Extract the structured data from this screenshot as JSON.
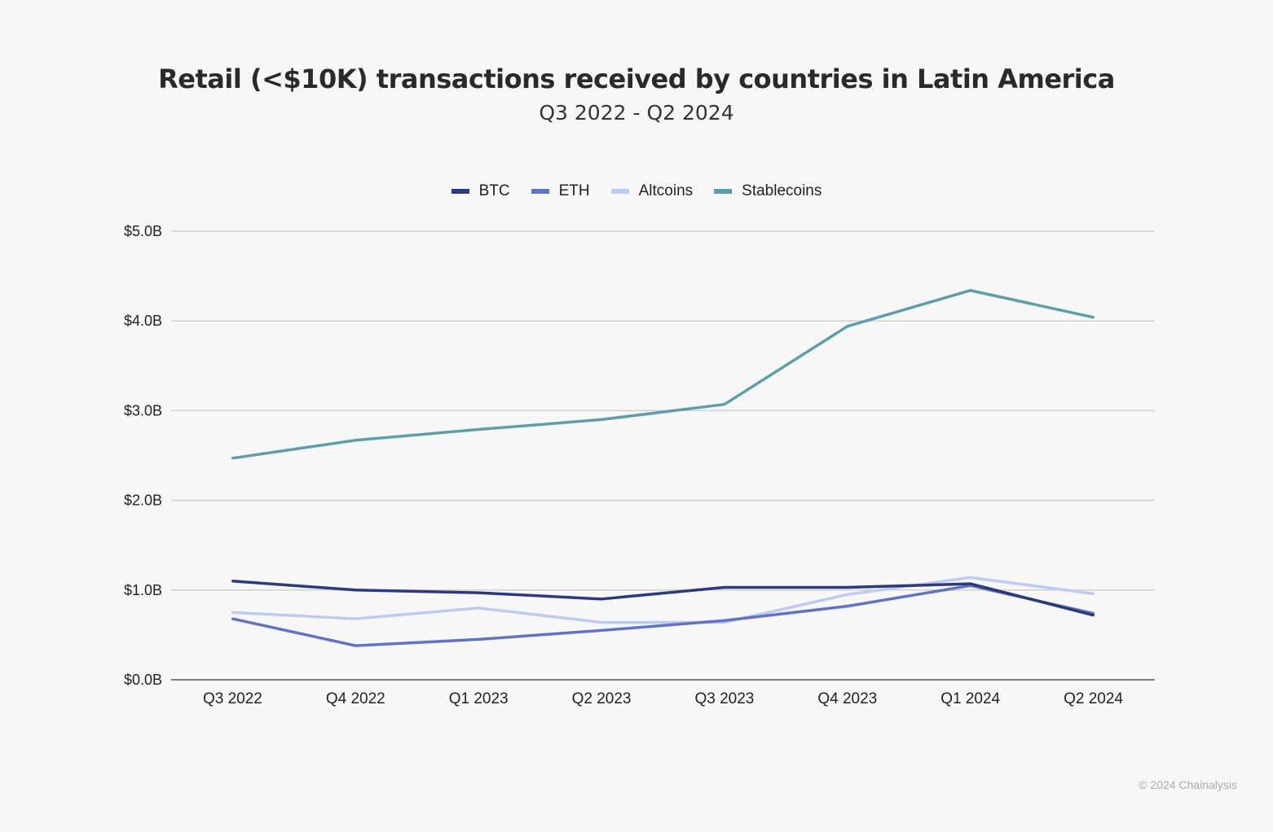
{
  "chart_data": {
    "type": "line",
    "title": "Retail (<$10K) transactions received by countries in Latin America",
    "subtitle": "Q3 2022 - Q2 2024",
    "categories": [
      "Q3 2022",
      "Q4 2022",
      "Q1 2023",
      "Q2 2023",
      "Q3 2023",
      "Q4 2023",
      "Q1 2024",
      "Q2 2024"
    ],
    "ylim": [
      0,
      5
    ],
    "yticks": [
      "$0.0B",
      "$1.0B",
      "$2.0B",
      "$3.0B",
      "$4.0B",
      "$5.0B"
    ],
    "grid": true,
    "legend_position": "top",
    "series": [
      {
        "name": "BTC",
        "color": "#2b3a7a",
        "values": [
          1.1,
          1.0,
          0.97,
          0.9,
          1.03,
          1.03,
          1.07,
          0.72
        ]
      },
      {
        "name": "ETH",
        "color": "#6174c4",
        "values": [
          0.68,
          0.38,
          0.45,
          0.55,
          0.66,
          0.82,
          1.05,
          0.74
        ]
      },
      {
        "name": "Altcoins",
        "color": "#bccbf2",
        "values": [
          0.75,
          0.68,
          0.8,
          0.64,
          0.64,
          0.95,
          1.14,
          0.96
        ]
      },
      {
        "name": "Stablecoins",
        "color": "#5f9ea8",
        "values": [
          2.47,
          2.67,
          2.79,
          2.9,
          3.07,
          3.94,
          4.34,
          4.04
        ]
      }
    ]
  },
  "credit": "© 2024 Chainalysis"
}
